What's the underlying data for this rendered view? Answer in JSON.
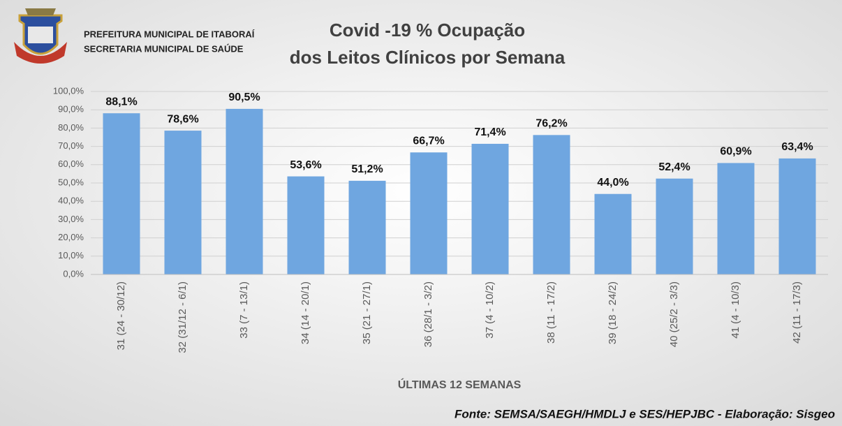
{
  "header": {
    "lines": [
      "PREFEITURA MUNICIPAL DE ITABORAÍ",
      "SECRETARIA MUNICIPAL DE SAÚDE"
    ]
  },
  "chart_data": {
    "type": "bar",
    "title": [
      "Covid -19 % Ocupação",
      "dos Leitos Clínicos por Semana"
    ],
    "x_label": "ÚLTIMAS 12 SEMANAS",
    "source": "Fonte: SEMSA/SAEGH/HMDLJ e SES/HEPJBC - Elaboração: Sisgeo",
    "categories": [
      "31 (24 - 30/12)",
      "32 (31/12 - 6/1)",
      "33 (7 - 13/1)",
      "34 (14 - 20/1)",
      "35 (21 - 27/1)",
      "36 (28/1 - 3/2)",
      "37 (4 - 10/2)",
      "38 (11 - 17/2)",
      "39 (18 - 24/2)",
      "40 (25/2 - 3/3)",
      "41 (4 - 10/3)",
      "42 (11 - 17/3)"
    ],
    "values": [
      88.1,
      78.6,
      90.5,
      53.6,
      51.2,
      66.7,
      71.4,
      76.2,
      44.0,
      52.4,
      60.9,
      63.4
    ],
    "value_labels": [
      "88,1%",
      "78,6%",
      "90,5%",
      "53,6%",
      "51,2%",
      "66,7%",
      "71,4%",
      "76,2%",
      "44,0%",
      "52,4%",
      "60,9%",
      "63,4%"
    ],
    "color": "#6fa6e0",
    "ylim": [
      0,
      100
    ],
    "yticks": [
      {
        "value": 0,
        "label": "0,0%"
      },
      {
        "value": 10,
        "label": "10,0%"
      },
      {
        "value": 20,
        "label": "20,0%"
      },
      {
        "value": 30,
        "label": "30,0%"
      },
      {
        "value": 40,
        "label": "40,0%"
      },
      {
        "value": 50,
        "label": "50,0%"
      },
      {
        "value": 60,
        "label": "60,0%"
      },
      {
        "value": 70,
        "label": "70,0%"
      },
      {
        "value": 80,
        "label": "80,0%"
      },
      {
        "value": 90,
        "label": "90,0%"
      },
      {
        "value": 100,
        "label": "100,0%"
      }
    ],
    "grid": true
  }
}
